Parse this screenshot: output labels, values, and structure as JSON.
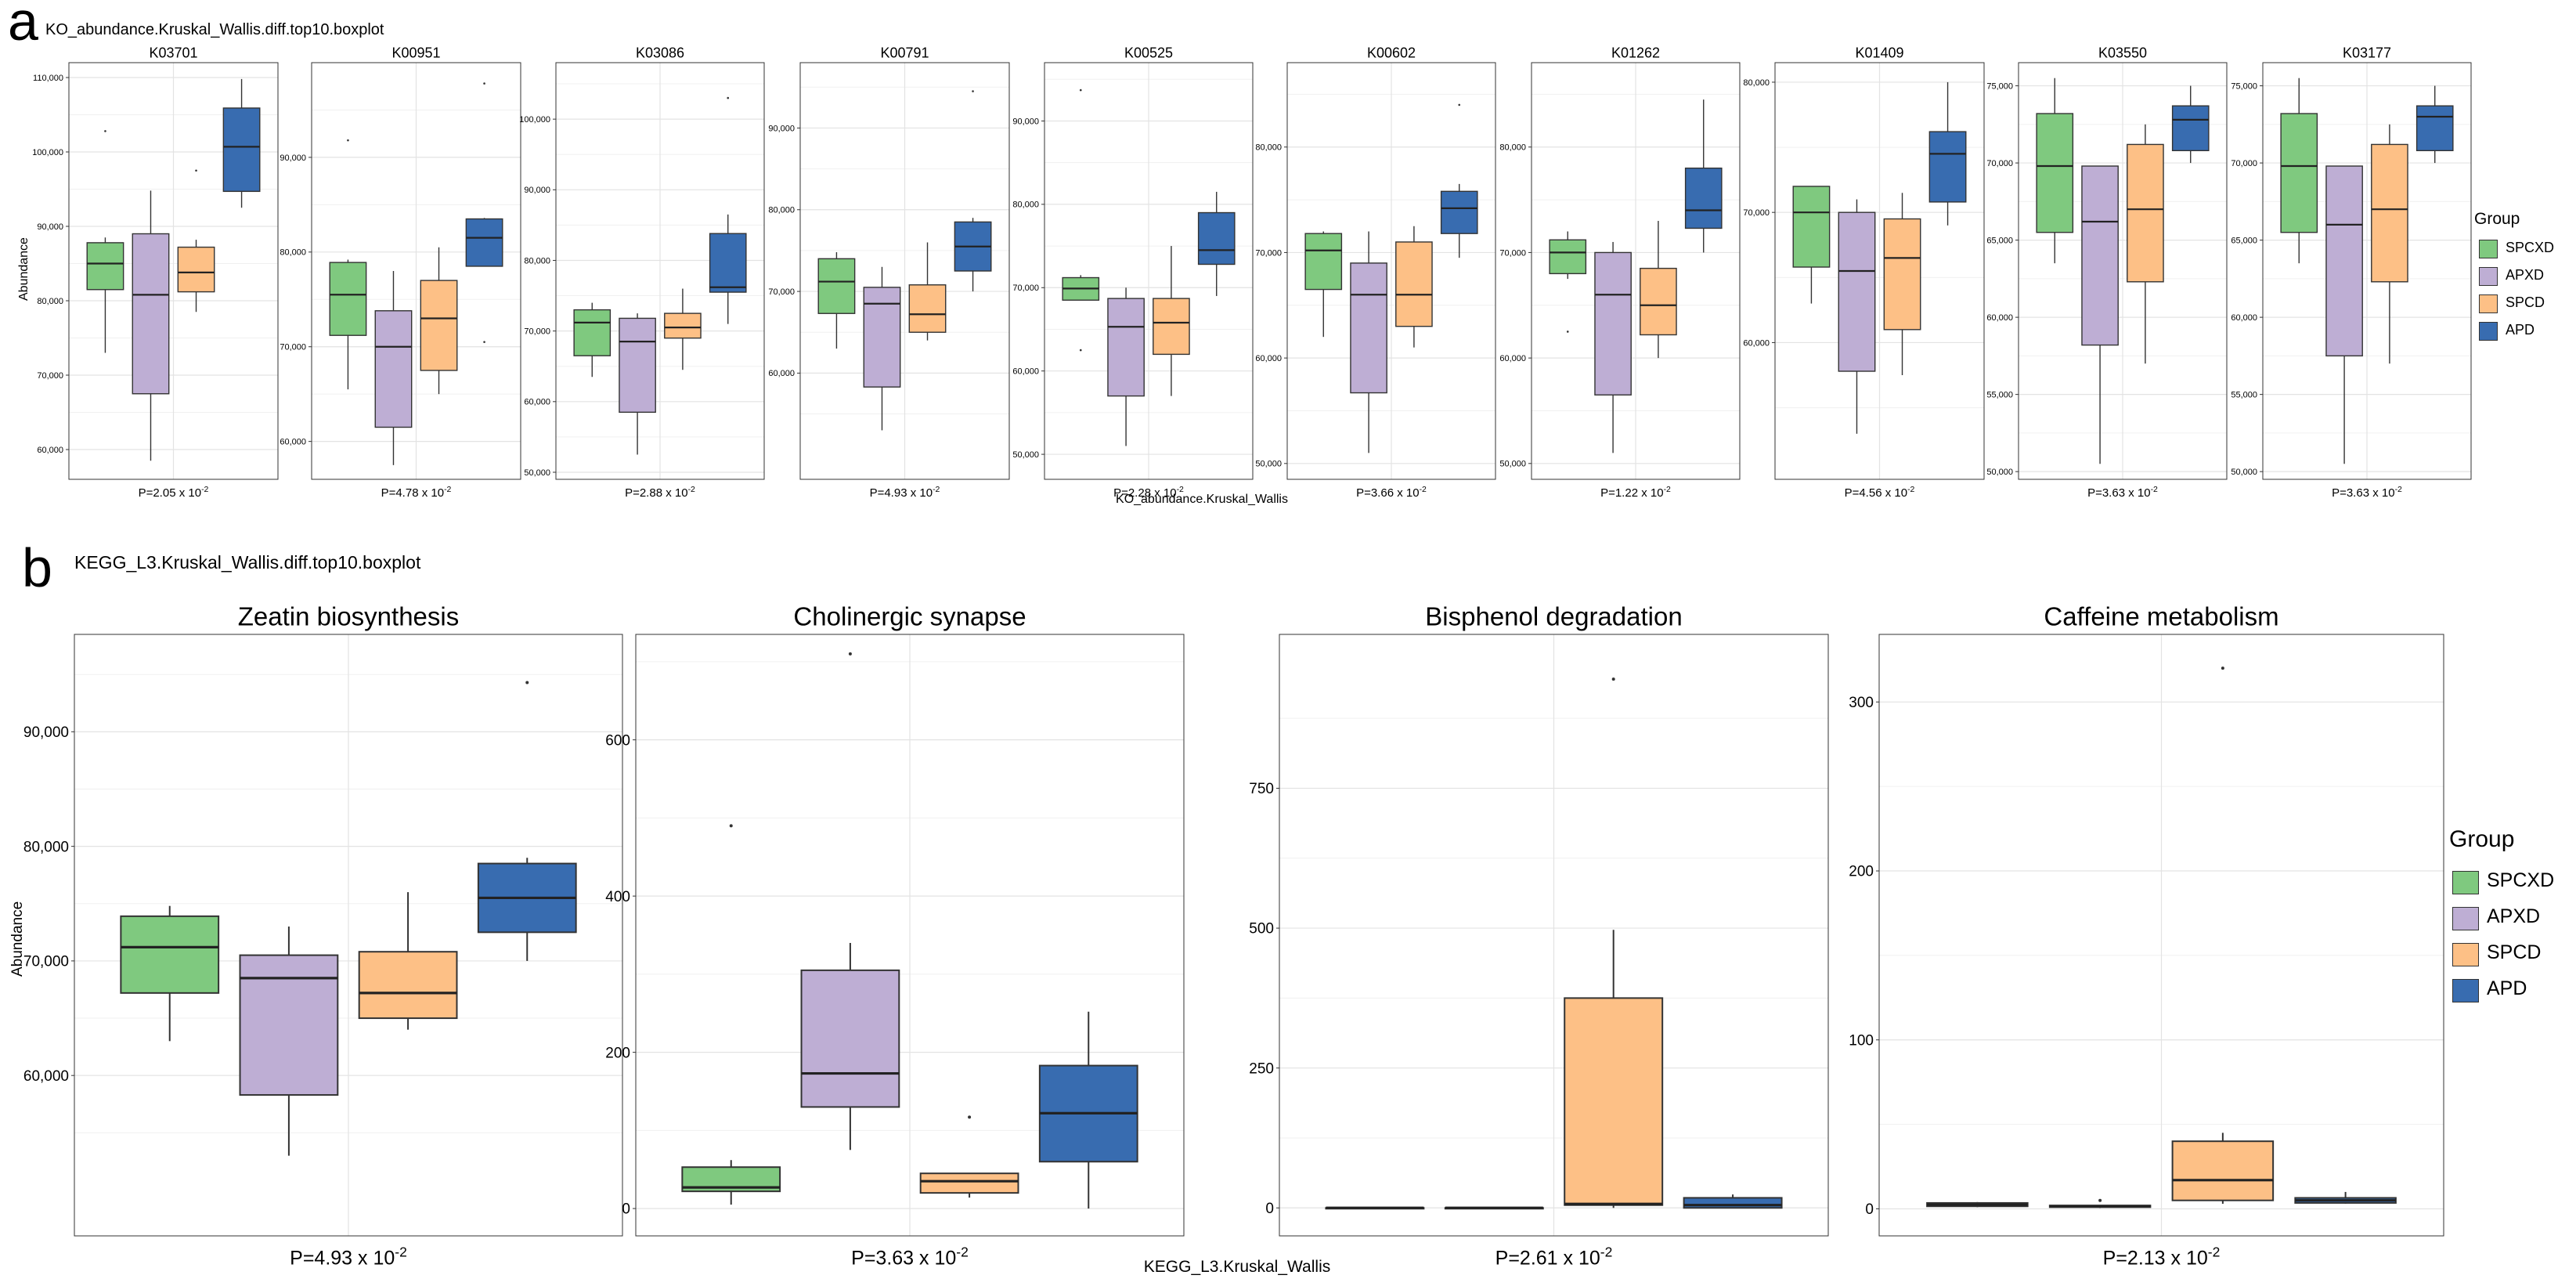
{
  "figure": {
    "panel_a": {
      "letter": "a",
      "title": "KO_abundance.Kruskal_Wallis.diff.top10.boxplot",
      "footer": "KO_abundance.Kruskal_Wallis",
      "y_label": "Abundance"
    },
    "panel_b": {
      "letter": "b",
      "title": "KEGG_L3.Kruskal_Wallis.diff.top10.boxplot",
      "footer": "KEGG_L3.Kruskal_Wallis",
      "y_label": "Abundance"
    },
    "legend": {
      "title": "Group",
      "items": [
        {
          "label": "SPCXD",
          "color": "#7fc97f"
        },
        {
          "label": "APXD",
          "color": "#beaed4"
        },
        {
          "label": "SPCD",
          "color": "#fdc086"
        },
        {
          "label": "APD",
          "color": "#386cb0"
        }
      ]
    }
  },
  "chart_data": [
    {
      "type": "box",
      "panel": "a",
      "title": "K03701",
      "ylabel": "Abundance",
      "p_value": "P=2.05 x 10-2",
      "ylim": [
        56000,
        112000
      ],
      "yticks": [
        60000,
        70000,
        80000,
        90000,
        100000,
        110000
      ],
      "yticklabels": [
        "60,000",
        "70,000",
        "80,000",
        "90,000",
        "100,000",
        "110,000"
      ],
      "series": [
        {
          "name": "SPCXD",
          "min": 73000,
          "q1": 81500,
          "median": 85000,
          "q3": 87800,
          "max": 88500,
          "outliers": [
            102800
          ]
        },
        {
          "name": "APXD",
          "min": 58500,
          "q1": 67500,
          "median": 80800,
          "q3": 89000,
          "max": 94800,
          "outliers": []
        },
        {
          "name": "SPCD",
          "min": 78500,
          "q1": 81200,
          "median": 83800,
          "q3": 87200,
          "max": 88200,
          "outliers": [
            97500
          ]
        },
        {
          "name": "APD",
          "min": 92500,
          "q1": 94700,
          "median": 100700,
          "q3": 105900,
          "max": 109800,
          "outliers": []
        }
      ]
    },
    {
      "type": "box",
      "panel": "a",
      "title": "K00951",
      "ylabel": "",
      "p_value": "P=4.78 x 10-2",
      "ylim": [
        56000,
        100000
      ],
      "yticks": [
        60000,
        70000,
        80000,
        90000
      ],
      "yticklabels": [
        "60,000",
        "70,000",
        "80,000",
        "90,000"
      ],
      "series": [
        {
          "name": "SPCXD",
          "min": 65500,
          "q1": 71200,
          "median": 75500,
          "q3": 78900,
          "max": 79200,
          "outliers": [
            91800
          ]
        },
        {
          "name": "APXD",
          "min": 57500,
          "q1": 61500,
          "median": 70000,
          "q3": 73800,
          "max": 78000,
          "outliers": []
        },
        {
          "name": "SPCD",
          "min": 65000,
          "q1": 67500,
          "median": 73000,
          "q3": 77000,
          "max": 80500,
          "outliers": []
        },
        {
          "name": "APD",
          "min": 78500,
          "q1": 78500,
          "median": 81500,
          "q3": 83500,
          "max": 83600,
          "outliers": [
            97800,
            70500
          ]
        }
      ]
    },
    {
      "type": "box",
      "panel": "a",
      "title": "K03086",
      "ylabel": "",
      "p_value": "P=2.88 x 10-2",
      "ylim": [
        49000,
        108000
      ],
      "yticks": [
        50000,
        60000,
        70000,
        80000,
        90000,
        100000
      ],
      "yticklabels": [
        "50,000",
        "60,000",
        "70,000",
        "80,000",
        "90,000",
        "100,000"
      ],
      "series": [
        {
          "name": "SPCXD",
          "min": 63500,
          "q1": 66500,
          "median": 71200,
          "q3": 73000,
          "max": 74000,
          "outliers": []
        },
        {
          "name": "APXD",
          "min": 52500,
          "q1": 58500,
          "median": 68500,
          "q3": 71800,
          "max": 72500,
          "outliers": []
        },
        {
          "name": "SPCD",
          "min": 64500,
          "q1": 69000,
          "median": 70500,
          "q3": 72500,
          "max": 76000,
          "outliers": []
        },
        {
          "name": "APD",
          "min": 71000,
          "q1": 75500,
          "median": 76200,
          "q3": 83800,
          "max": 86500,
          "outliers": [
            103000
          ]
        }
      ]
    },
    {
      "type": "box",
      "panel": "a",
      "title": "K00791",
      "ylabel": "",
      "p_value": "P=4.93 x 10-2",
      "ylim": [
        47000,
        98000
      ],
      "yticks": [
        60000,
        70000,
        80000,
        90000
      ],
      "yticklabels": [
        "60,000",
        "70,000",
        "80,000",
        "90,000"
      ],
      "series": [
        {
          "name": "SPCXD",
          "min": 63000,
          "q1": 67300,
          "median": 71200,
          "q3": 74000,
          "max": 74800,
          "outliers": []
        },
        {
          "name": "APXD",
          "min": 53000,
          "q1": 58300,
          "median": 68500,
          "q3": 70500,
          "max": 73000,
          "outliers": []
        },
        {
          "name": "SPCD",
          "min": 64000,
          "q1": 65000,
          "median": 67200,
          "q3": 70800,
          "max": 76000,
          "outliers": []
        },
        {
          "name": "APD",
          "min": 70000,
          "q1": 72500,
          "median": 75500,
          "q3": 78500,
          "max": 79000,
          "outliers": [
            94500
          ]
        }
      ]
    },
    {
      "type": "box",
      "panel": "a",
      "title": "K00525",
      "ylabel": "",
      "p_value": "P=2.28 x 10-2",
      "ylim": [
        47000,
        97000
      ],
      "yticks": [
        50000,
        60000,
        70000,
        80000,
        90000
      ],
      "yticklabels": [
        "50,000",
        "60,000",
        "70,000",
        "80,000",
        "90,000"
      ],
      "series": [
        {
          "name": "SPCXD",
          "min": 68500,
          "q1": 68500,
          "median": 69900,
          "q3": 71200,
          "max": 71500,
          "outliers": [
            93700,
            62500
          ]
        },
        {
          "name": "APXD",
          "min": 51000,
          "q1": 57000,
          "median": 65300,
          "q3": 68700,
          "max": 70000,
          "outliers": []
        },
        {
          "name": "SPCD",
          "min": 57000,
          "q1": 62000,
          "median": 65800,
          "q3": 68700,
          "max": 75000,
          "outliers": []
        },
        {
          "name": "APD",
          "min": 69000,
          "q1": 72800,
          "median": 74500,
          "q3": 79000,
          "max": 81500,
          "outliers": []
        }
      ]
    },
    {
      "type": "box",
      "panel": "a",
      "title": "K00602",
      "ylabel": "",
      "p_value": "P=3.66 x 10-2",
      "ylim": [
        48500,
        88000
      ],
      "yticks": [
        50000,
        60000,
        70000,
        80000
      ],
      "yticklabels": [
        "50,000",
        "60,000",
        "70,000",
        "80,000"
      ],
      "series": [
        {
          "name": "SPCXD",
          "min": 62000,
          "q1": 66500,
          "median": 70200,
          "q3": 71800,
          "max": 72000,
          "outliers": []
        },
        {
          "name": "APXD",
          "min": 51000,
          "q1": 56700,
          "median": 66000,
          "q3": 69000,
          "max": 72000,
          "outliers": []
        },
        {
          "name": "SPCD",
          "min": 61000,
          "q1": 63000,
          "median": 66000,
          "q3": 71000,
          "max": 72500,
          "outliers": []
        },
        {
          "name": "APD",
          "min": 69500,
          "q1": 71800,
          "median": 74200,
          "q3": 75800,
          "max": 76500,
          "outliers": [
            84000
          ]
        }
      ]
    },
    {
      "type": "box",
      "panel": "a",
      "title": "K01262",
      "ylabel": "",
      "p_value": "P=1.22 x 10-2",
      "ylim": [
        48500,
        88000
      ],
      "yticks": [
        50000,
        60000,
        70000,
        80000
      ],
      "yticklabels": [
        "50,000",
        "60,000",
        "70,000",
        "80,000"
      ],
      "series": [
        {
          "name": "SPCXD",
          "min": 67500,
          "q1": 68000,
          "median": 70000,
          "q3": 71200,
          "max": 72000,
          "outliers": [
            62500
          ]
        },
        {
          "name": "APXD",
          "min": 51000,
          "q1": 56500,
          "median": 66000,
          "q3": 70000,
          "max": 71000,
          "outliers": []
        },
        {
          "name": "SPCD",
          "min": 60000,
          "q1": 62200,
          "median": 65000,
          "q3": 68500,
          "max": 73000,
          "outliers": []
        },
        {
          "name": "APD",
          "min": 70000,
          "q1": 72300,
          "median": 74000,
          "q3": 78000,
          "max": 84500,
          "outliers": []
        }
      ]
    },
    {
      "type": "box",
      "panel": "a",
      "title": "K01409",
      "ylabel": "",
      "p_value": "P=4.56 x 10-2",
      "ylim": [
        49500,
        81500
      ],
      "yticks": [
        60000,
        70000,
        80000
      ],
      "yticklabels": [
        "60,000",
        "70,000",
        "80,000"
      ],
      "series": [
        {
          "name": "SPCXD",
          "min": 63000,
          "q1": 65800,
          "median": 70000,
          "q3": 72000,
          "max": 72000,
          "outliers": []
        },
        {
          "name": "APXD",
          "min": 53000,
          "q1": 57800,
          "median": 65500,
          "q3": 70000,
          "max": 71000,
          "outliers": []
        },
        {
          "name": "SPCD",
          "min": 57500,
          "q1": 61000,
          "median": 66500,
          "q3": 69500,
          "max": 71500,
          "outliers": []
        },
        {
          "name": "APD",
          "min": 69000,
          "q1": 70800,
          "median": 74500,
          "q3": 76200,
          "max": 80000,
          "outliers": []
        }
      ]
    },
    {
      "type": "box",
      "panel": "a",
      "title": "K03550",
      "ylabel": "",
      "p_value": "P=3.63 x 10-2",
      "ylim": [
        49500,
        76500
      ],
      "yticks": [
        50000,
        55000,
        60000,
        65000,
        70000,
        75000
      ],
      "yticklabels": [
        "50,000",
        "55,000",
        "60,000",
        "65,000",
        "70,000",
        "75,000"
      ],
      "series": [
        {
          "name": "SPCXD",
          "min": 63500,
          "q1": 65500,
          "median": 69800,
          "q3": 73200,
          "max": 75500,
          "outliers": []
        },
        {
          "name": "APXD",
          "min": 50500,
          "q1": 58200,
          "median": 66200,
          "q3": 69800,
          "max": 69800,
          "outliers": []
        },
        {
          "name": "SPCD",
          "min": 57000,
          "q1": 62300,
          "median": 67000,
          "q3": 71200,
          "max": 72500,
          "outliers": []
        },
        {
          "name": "APD",
          "min": 70000,
          "q1": 70800,
          "median": 72800,
          "q3": 73700,
          "max": 75000,
          "outliers": []
        }
      ]
    },
    {
      "type": "box",
      "panel": "a",
      "title": "K03177",
      "ylabel": "",
      "p_value": "P=3.63 x 10-2",
      "ylim": [
        49500,
        76500
      ],
      "yticks": [
        50000,
        55000,
        60000,
        65000,
        70000,
        75000
      ],
      "yticklabels": [
        "50,000",
        "55,000",
        "60,000",
        "65,000",
        "70,000",
        "75,000"
      ],
      "series": [
        {
          "name": "SPCXD",
          "min": 63500,
          "q1": 65500,
          "median": 69800,
          "q3": 73200,
          "max": 75500,
          "outliers": []
        },
        {
          "name": "APXD",
          "min": 50500,
          "q1": 57500,
          "median": 66000,
          "q3": 69800,
          "max": 69800,
          "outliers": []
        },
        {
          "name": "SPCD",
          "min": 57000,
          "q1": 62300,
          "median": 67000,
          "q3": 71200,
          "max": 72500,
          "outliers": []
        },
        {
          "name": "APD",
          "min": 70000,
          "q1": 70800,
          "median": 73000,
          "q3": 73700,
          "max": 75000,
          "outliers": []
        }
      ]
    },
    {
      "type": "box",
      "panel": "b",
      "title": "Zeatin biosynthesis",
      "ylabel": "Abundance",
      "p_value": "P=4.93 x 10-2",
      "ylim": [
        46000,
        98500
      ],
      "yticks": [
        60000,
        70000,
        80000,
        90000
      ],
      "yticklabels": [
        "60,000",
        "70,000",
        "80,000",
        "90,000"
      ],
      "series": [
        {
          "name": "SPCXD",
          "min": 63000,
          "q1": 67200,
          "median": 71200,
          "q3": 73900,
          "max": 74800,
          "outliers": []
        },
        {
          "name": "APXD",
          "min": 53000,
          "q1": 58300,
          "median": 68500,
          "q3": 70500,
          "max": 73000,
          "outliers": []
        },
        {
          "name": "SPCD",
          "min": 64000,
          "q1": 65000,
          "median": 67200,
          "q3": 70800,
          "max": 76000,
          "outliers": []
        },
        {
          "name": "APD",
          "min": 70000,
          "q1": 72500,
          "median": 75500,
          "q3": 78500,
          "max": 79000,
          "outliers": [
            94300
          ]
        }
      ]
    },
    {
      "type": "box",
      "panel": "b",
      "title": "Cholinergic synapse",
      "ylabel": "",
      "p_value": "P=3.63 x 10-2",
      "ylim": [
        -35,
        735
      ],
      "yticks": [
        0,
        200,
        400,
        600
      ],
      "yticklabels": [
        "0",
        "200",
        "400",
        "600"
      ],
      "series": [
        {
          "name": "SPCXD",
          "min": 5,
          "q1": 22,
          "median": 27,
          "q3": 53,
          "max": 62,
          "outliers": [
            490
          ]
        },
        {
          "name": "APXD",
          "min": 75,
          "q1": 130,
          "median": 173,
          "q3": 305,
          "max": 340,
          "outliers": [
            710
          ]
        },
        {
          "name": "SPCD",
          "min": 14,
          "q1": 20,
          "median": 35,
          "q3": 45,
          "max": 45,
          "outliers": [
            117
          ]
        },
        {
          "name": "APD",
          "min": 0,
          "q1": 60,
          "median": 122,
          "q3": 183,
          "max": 252,
          "outliers": []
        }
      ]
    },
    {
      "type": "box",
      "panel": "b",
      "title": "Bisphenol degradation",
      "ylabel": "",
      "p_value": "P=2.61 x 10-2",
      "ylim": [
        -50,
        1025
      ],
      "yticks": [
        0,
        250,
        500,
        750
      ],
      "yticklabels": [
        "0",
        "250",
        "500",
        "750"
      ],
      "series": [
        {
          "name": "SPCXD",
          "min": 0,
          "q1": 0,
          "median": 0,
          "q3": 0,
          "max": 0,
          "outliers": []
        },
        {
          "name": "APXD",
          "min": 0,
          "q1": 0,
          "median": 0,
          "q3": 0,
          "max": 0,
          "outliers": []
        },
        {
          "name": "SPCD",
          "min": 0,
          "q1": 5,
          "median": 7,
          "q3": 375,
          "max": 497,
          "outliers": [
            945
          ]
        },
        {
          "name": "APD",
          "min": 0,
          "q1": 0,
          "median": 5,
          "q3": 18,
          "max": 24,
          "outliers": []
        }
      ]
    },
    {
      "type": "box",
      "panel": "b",
      "title": "Caffeine metabolism",
      "ylabel": "",
      "p_value": "P=2.13 x 10-2",
      "ylim": [
        -16,
        340
      ],
      "yticks": [
        0,
        100,
        200,
        300
      ],
      "yticklabels": [
        "0",
        "100",
        "200",
        "300"
      ],
      "series": [
        {
          "name": "SPCXD",
          "min": 1,
          "q1": 1.5,
          "median": 2.5,
          "q3": 3.5,
          "max": 4,
          "outliers": []
        },
        {
          "name": "APXD",
          "min": 0.5,
          "q1": 1,
          "median": 1.5,
          "q3": 2,
          "max": 2,
          "outliers": [
            5
          ]
        },
        {
          "name": "SPCD",
          "min": 3,
          "q1": 5,
          "median": 17,
          "q3": 40,
          "max": 45,
          "outliers": [
            320
          ]
        },
        {
          "name": "APD",
          "min": 3,
          "q1": 3.5,
          "median": 5,
          "q3": 6.5,
          "max": 10,
          "outliers": []
        }
      ]
    }
  ]
}
